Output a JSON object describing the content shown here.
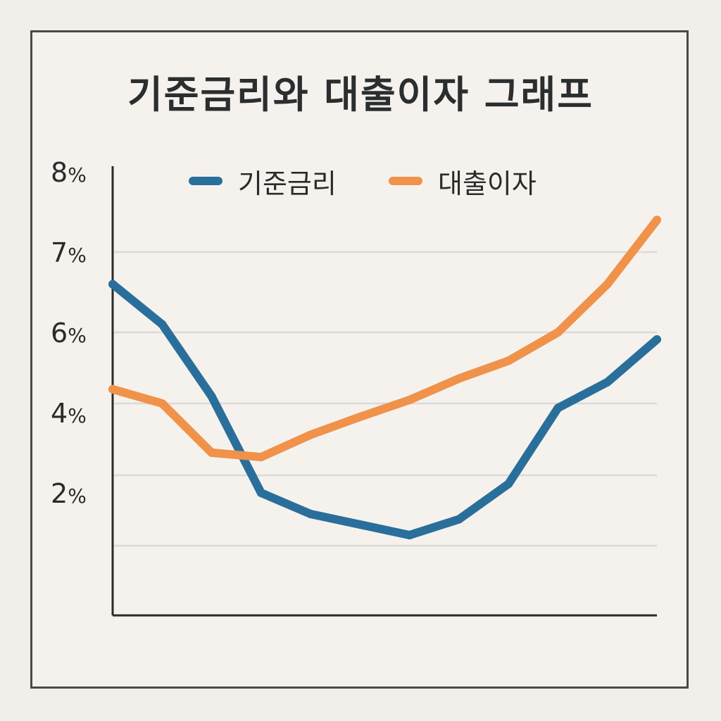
{
  "chart_data": {
    "type": "line",
    "title": "기준금리와 대출이자 그래프",
    "xlabel": "",
    "ylabel": "",
    "y_tick_labels": [
      {
        "value": 8,
        "text": "8%"
      },
      {
        "value": 7,
        "text": "7%"
      },
      {
        "value": 6,
        "text": "6%"
      },
      {
        "value": 4,
        "text": "4%"
      },
      {
        "value": 2,
        "text": "2%"
      }
    ],
    "ylim": [
      0,
      8
    ],
    "grid": true,
    "legend_position": "top-center",
    "x": [
      0,
      1,
      2,
      3,
      4,
      5,
      6,
      7,
      8,
      9,
      10,
      11
    ],
    "series": [
      {
        "name": "기준금리",
        "color": "#2a6f9b",
        "values": [
          6.6,
          6.1,
          4.2,
          2.0,
          1.6,
          1.4,
          1.2,
          1.5,
          2.2,
          3.9,
          4.6,
          5.8
        ]
      },
      {
        "name": "대출이자",
        "color": "#f0924a",
        "values": [
          4.4,
          4.0,
          2.9,
          2.8,
          3.3,
          3.7,
          4.1,
          4.7,
          5.2,
          6.0,
          6.6,
          7.4
        ]
      }
    ]
  }
}
